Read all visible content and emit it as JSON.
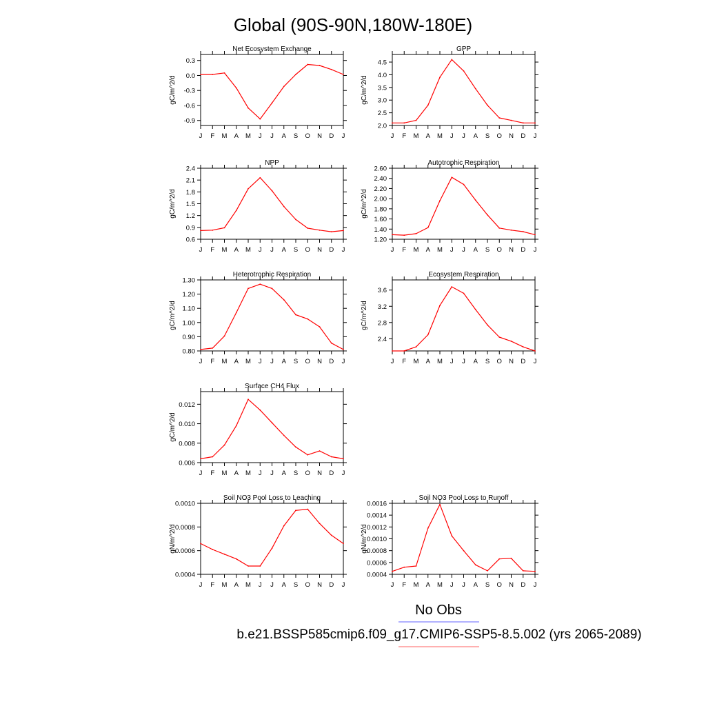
{
  "page": {
    "title": "Global (90S-90N,180W-180E)",
    "legend_label": "No Obs",
    "legend_obs_color": "#8080ff",
    "legend_model_color": "#ff8080",
    "case_label": "b.e21.BSSP585cmip6.f09_g17.CMIP6-SSP5-8.5.002 (yrs 2065-2089)"
  },
  "chart_data": [
    {
      "type": "line",
      "title": "Net Ecosystem Exchange",
      "ylabel": "gC/m^2/d",
      "xlabel": "",
      "x": [
        "J",
        "F",
        "M",
        "A",
        "M",
        "J",
        "J",
        "A",
        "S",
        "O",
        "N",
        "D",
        "J"
      ],
      "ylim": [
        -1.0,
        0.42
      ],
      "yticks": [
        -0.9,
        -0.6,
        -0.3,
        0.0,
        0.3
      ],
      "ytick_labels": [
        "-0.9",
        "-0.6",
        "-0.3",
        "0.0",
        "0.3"
      ],
      "grid": false,
      "series": [
        {
          "color": "#ff0000",
          "values": [
            0.02,
            0.02,
            0.05,
            -0.25,
            -0.65,
            -0.87,
            -0.55,
            -0.22,
            0.02,
            0.22,
            0.2,
            0.12,
            0.02
          ]
        }
      ]
    },
    {
      "type": "line",
      "title": "GPP",
      "ylabel": "gC/m^2/d",
      "xlabel": "",
      "x": [
        "J",
        "F",
        "M",
        "A",
        "M",
        "J",
        "J",
        "A",
        "S",
        "O",
        "N",
        "D",
        "J"
      ],
      "ylim": [
        2.0,
        4.8
      ],
      "yticks": [
        2.0,
        2.5,
        3.0,
        3.5,
        4.0,
        4.5
      ],
      "ytick_labels": [
        "2.0",
        "2.5",
        "3.0",
        "3.5",
        "4.0",
        "4.5"
      ],
      "grid": false,
      "series": [
        {
          "color": "#ff0000",
          "values": [
            2.1,
            2.1,
            2.2,
            2.8,
            3.9,
            4.6,
            4.15,
            3.45,
            2.8,
            2.3,
            2.2,
            2.1,
            2.1
          ]
        }
      ]
    },
    {
      "type": "line",
      "title": "NPP",
      "ylabel": "gC/m^2/d",
      "xlabel": "",
      "x": [
        "J",
        "F",
        "M",
        "A",
        "M",
        "J",
        "J",
        "A",
        "S",
        "O",
        "N",
        "D",
        "J"
      ],
      "ylim": [
        0.6,
        2.4
      ],
      "yticks": [
        0.6,
        0.9,
        1.2,
        1.5,
        1.8,
        2.1,
        2.4
      ],
      "ytick_labels": [
        "0.6",
        "0.9",
        "1.2",
        "1.5",
        "1.8",
        "2.1",
        "2.4"
      ],
      "grid": false,
      "series": [
        {
          "color": "#ff0000",
          "values": [
            0.82,
            0.83,
            0.89,
            1.33,
            1.88,
            2.16,
            1.83,
            1.43,
            1.1,
            0.88,
            0.83,
            0.79,
            0.82
          ]
        }
      ]
    },
    {
      "type": "line",
      "title": "Autotrophic Respiration",
      "ylabel": "gC/m^2/d",
      "xlabel": "",
      "x": [
        "J",
        "F",
        "M",
        "A",
        "M",
        "J",
        "J",
        "A",
        "S",
        "O",
        "N",
        "D",
        "J"
      ],
      "ylim": [
        1.2,
        2.6
      ],
      "yticks": [
        1.2,
        1.4,
        1.6,
        1.8,
        2.0,
        2.2,
        2.4,
        2.6
      ],
      "ytick_labels": [
        "1.20",
        "1.40",
        "1.60",
        "1.80",
        "2.00",
        "2.20",
        "2.40",
        "2.60"
      ],
      "grid": false,
      "series": [
        {
          "color": "#ff0000",
          "values": [
            1.29,
            1.28,
            1.31,
            1.43,
            1.96,
            2.42,
            2.28,
            1.97,
            1.68,
            1.42,
            1.38,
            1.35,
            1.29
          ]
        }
      ]
    },
    {
      "type": "line",
      "title": "Heterotrophic Respiration",
      "ylabel": "gC/m^2/d",
      "xlabel": "",
      "x": [
        "J",
        "F",
        "M",
        "A",
        "M",
        "J",
        "J",
        "A",
        "S",
        "O",
        "N",
        "D",
        "J"
      ],
      "ylim": [
        0.8,
        1.3
      ],
      "yticks": [
        0.8,
        0.9,
        1.0,
        1.1,
        1.2,
        1.3
      ],
      "ytick_labels": [
        "0.80",
        "0.90",
        "1.00",
        "1.10",
        "1.20",
        "1.30"
      ],
      "grid": false,
      "series": [
        {
          "color": "#ff0000",
          "values": [
            0.81,
            0.82,
            0.905,
            1.07,
            1.24,
            1.27,
            1.24,
            1.16,
            1.055,
            1.025,
            0.97,
            0.855,
            0.81
          ]
        }
      ]
    },
    {
      "type": "line",
      "title": "Ecosystem Respiration",
      "ylabel": "gC/m^2/d",
      "xlabel": "",
      "x": [
        "J",
        "F",
        "M",
        "A",
        "M",
        "J",
        "J",
        "A",
        "S",
        "O",
        "N",
        "D",
        "J"
      ],
      "ylim": [
        2.1,
        3.85
      ],
      "yticks": [
        2.4,
        2.8,
        3.2,
        3.6
      ],
      "ytick_labels": [
        "2.4",
        "2.8",
        "3.2",
        "3.6"
      ],
      "grid": false,
      "series": [
        {
          "color": "#ff0000",
          "values": [
            2.1,
            2.1,
            2.2,
            2.5,
            3.22,
            3.68,
            3.52,
            3.12,
            2.74,
            2.44,
            2.34,
            2.2,
            2.1
          ]
        }
      ]
    },
    {
      "type": "line",
      "title": "Surface CH4 Flux",
      "ylabel": "gC/m^2/d",
      "xlabel": "",
      "x": [
        "J",
        "F",
        "M",
        "A",
        "M",
        "J",
        "J",
        "A",
        "S",
        "O",
        "N",
        "D",
        "J"
      ],
      "ylim": [
        0.006,
        0.0133
      ],
      "yticks": [
        0.006,
        0.008,
        0.01,
        0.012
      ],
      "ytick_labels": [
        "0.006",
        "0.008",
        "0.010",
        "0.012"
      ],
      "grid": false,
      "series": [
        {
          "color": "#ff0000",
          "values": [
            0.0064,
            0.0066,
            0.0078,
            0.0098,
            0.0125,
            0.0114,
            0.0101,
            0.0088,
            0.0076,
            0.0068,
            0.0072,
            0.0066,
            0.0064
          ]
        }
      ]
    },
    {
      "type": "line",
      "title": "Soil NO3 Pool Loss to Leaching",
      "ylabel": "gN/m^2/d",
      "xlabel": "",
      "x": [
        "J",
        "F",
        "M",
        "A",
        "M",
        "J",
        "J",
        "A",
        "S",
        "O",
        "N",
        "D",
        "J"
      ],
      "ylim": [
        0.0004,
        0.001
      ],
      "yticks": [
        0.0004,
        0.0006,
        0.0008,
        0.001
      ],
      "ytick_labels": [
        "0.0004",
        "0.0006",
        "0.0008",
        "0.0010"
      ],
      "grid": false,
      "series": [
        {
          "color": "#ff0000",
          "values": [
            0.00066,
            0.00061,
            0.00057,
            0.00053,
            0.00047,
            0.00047,
            0.00062,
            0.00081,
            0.00094,
            0.00095,
            0.00083,
            0.00073,
            0.00066
          ]
        }
      ]
    },
    {
      "type": "line",
      "title": "Soil NO3 Pool Loss to Runoff",
      "ylabel": "gN/m^2/d",
      "xlabel": "",
      "x": [
        "J",
        "F",
        "M",
        "A",
        "M",
        "J",
        "J",
        "A",
        "S",
        "O",
        "N",
        "D",
        "J"
      ],
      "ylim": [
        0.0004,
        0.0016
      ],
      "yticks": [
        0.0004,
        0.0006,
        0.0008,
        0.001,
        0.0012,
        0.0014,
        0.0016
      ],
      "ytick_labels": [
        "0.0004",
        "0.0006",
        "0.0008",
        "0.0010",
        "0.0012",
        "0.0014",
        "0.0016"
      ],
      "grid": false,
      "series": [
        {
          "color": "#ff0000",
          "values": [
            0.00045,
            0.00052,
            0.00054,
            0.00118,
            0.00158,
            0.00105,
            0.0008,
            0.00056,
            0.00046,
            0.00066,
            0.00067,
            0.00046,
            0.00045
          ]
        }
      ]
    }
  ]
}
